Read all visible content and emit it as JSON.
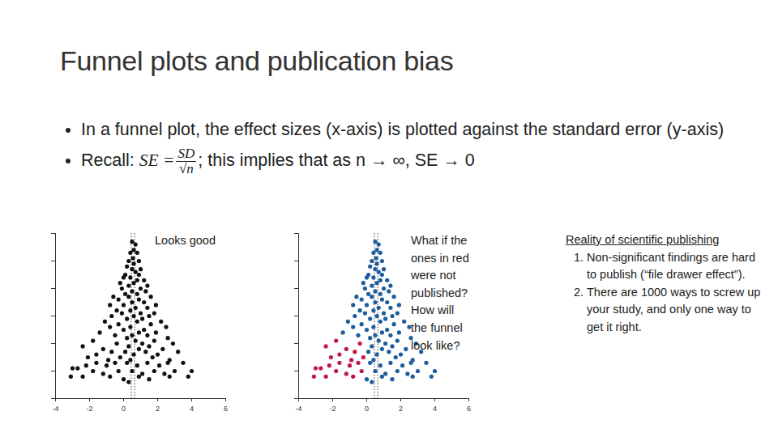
{
  "title": "Funnel plots and publication bias",
  "bullets": [
    "In a funnel plot, the effect sizes (x-axis) is plotted against the standard error (y-axis)"
  ],
  "recall": {
    "prefix": "Recall: ",
    "lhs": "SE =",
    "numerator": "SD",
    "denominator": "√n",
    "suffix": "; this implies that as n → ∞, SE → 0"
  },
  "side_note": {
    "heading": "Reality of scientific publishing",
    "items": [
      "Non-significant findings are hard to publish (“file drawer effect”).",
      "There are 1000 ways to screw up your study, and only one way to get it right."
    ]
  },
  "chart_data": [
    {
      "type": "scatter",
      "annotation": [
        "Looks good"
      ],
      "marker": "circle",
      "grid": false,
      "tick_labels": "x",
      "xlim": [
        -4,
        6
      ],
      "xticks": [
        -4,
        -2,
        0,
        2,
        4,
        6
      ],
      "ylim": [
        0.6,
        0
      ],
      "yticks": [
        0,
        0.1,
        0.2,
        0.3,
        0.4,
        0.5,
        0.6
      ],
      "vlines": [
        0.45,
        0.65
      ],
      "series": [
        {
          "color": "#111111",
          "x": [
            0.5,
            0.7,
            0.6,
            0.4,
            0.8,
            0.55,
            0.3,
            0.9,
            0.6,
            0.2,
            1.0,
            0.5,
            0.7,
            0.1,
            0.9,
            0.0,
            0.4,
            1.2,
            0.8,
            -0.2,
            0.6,
            1.4,
            0.3,
            1.0,
            -0.1,
            0.5,
            1.3,
            0.8,
            0.1,
            -0.6,
            0.3,
            1.6,
            0.9,
            -0.3,
            1.2,
            0.5,
            -0.8,
            1.9,
            0.0,
            0.7,
            1.4,
            -0.4,
            0.4,
            1.0,
            1.8,
            -0.1,
            0.6,
            -0.7,
            1.5,
            0.2,
            1.1,
            -1.1,
            2.2,
            0.8,
            -0.3,
            1.6,
            0.4,
            -0.8,
            2.5,
            1.2,
            0.0,
            -1.4,
            0.9,
            1.9,
            0.5,
            -0.5,
            1.4,
            2.6,
            0.2,
            -1.8,
            0.7,
            1.8,
            -0.4,
            1.1,
            2.9,
            -2.4,
            0.3,
            1.5,
            -1.2,
            0.9,
            2.3,
            -0.7,
            0.1,
            1.3,
            3.2,
            -1.6,
            0.6,
            2.0,
            -0.2,
            1.7,
            -2.1,
            0.4,
            2.7,
            -0.9,
            -3.0,
            -2.7,
            -2.2,
            -1.6,
            -1.0,
            -0.5,
            0.2,
            0.8,
            1.4,
            2.1,
            2.6,
            3.5,
            -1.8,
            -1.2,
            -0.3,
            0.5,
            1.1,
            1.8,
            2.4,
            3.0,
            4.0,
            -0.8,
            0.0,
            0.9,
            1.5,
            2.7,
            3.8,
            -2.4,
            -3.1,
            0.3
          ],
          "y": [
            0.03,
            0.04,
            0.06,
            0.07,
            0.07,
            0.09,
            0.1,
            0.1,
            0.11,
            0.12,
            0.13,
            0.13,
            0.14,
            0.15,
            0.15,
            0.16,
            0.16,
            0.17,
            0.17,
            0.18,
            0.18,
            0.19,
            0.19,
            0.2,
            0.2,
            0.21,
            0.21,
            0.22,
            0.22,
            0.23,
            0.23,
            0.23,
            0.24,
            0.24,
            0.25,
            0.25,
            0.26,
            0.26,
            0.26,
            0.27,
            0.27,
            0.28,
            0.28,
            0.29,
            0.29,
            0.29,
            0.3,
            0.3,
            0.3,
            0.31,
            0.31,
            0.32,
            0.32,
            0.32,
            0.33,
            0.33,
            0.34,
            0.34,
            0.34,
            0.35,
            0.35,
            0.36,
            0.36,
            0.36,
            0.37,
            0.37,
            0.37,
            0.38,
            0.38,
            0.39,
            0.39,
            0.39,
            0.4,
            0.4,
            0.4,
            0.41,
            0.41,
            0.41,
            0.42,
            0.42,
            0.42,
            0.43,
            0.43,
            0.43,
            0.43,
            0.44,
            0.44,
            0.44,
            0.45,
            0.45,
            0.45,
            0.46,
            0.46,
            0.46,
            0.49,
            0.49,
            0.48,
            0.47,
            0.48,
            0.47,
            0.47,
            0.48,
            0.47,
            0.48,
            0.47,
            0.47,
            0.5,
            0.51,
            0.5,
            0.5,
            0.51,
            0.5,
            0.51,
            0.5,
            0.5,
            0.52,
            0.53,
            0.52,
            0.53,
            0.52,
            0.52,
            0.52,
            0.52,
            0.54
          ]
        }
      ]
    },
    {
      "type": "scatter",
      "annotation": [
        "What if the",
        "ones in red",
        "were not",
        "published?",
        "How will",
        "the funnel",
        "look like?"
      ],
      "marker": "circle",
      "grid": false,
      "tick_labels": "x",
      "xlim": [
        -4,
        6
      ],
      "xticks": [
        -4,
        -2,
        0,
        2,
        4,
        6
      ],
      "ylim": [
        0.6,
        0
      ],
      "yticks": [
        0,
        0.1,
        0.2,
        0.3,
        0.4,
        0.5,
        0.6
      ],
      "vlines": [
        0.45,
        0.65
      ],
      "series": [
        {
          "color": "#1f5c9e",
          "x": [
            0.5,
            0.7,
            0.6,
            0.4,
            0.8,
            0.55,
            0.3,
            0.9,
            0.6,
            0.2,
            1.0,
            0.5,
            0.7,
            0.1,
            0.9,
            0.0,
            0.4,
            1.2,
            0.8,
            -0.2,
            0.6,
            1.4,
            0.3,
            1.0,
            -0.1,
            0.5,
            1.3,
            0.8,
            0.1,
            -0.6,
            0.3,
            1.6,
            0.9,
            -0.3,
            1.2,
            0.5,
            -0.8,
            1.9,
            0.0,
            0.7,
            1.4,
            -0.4,
            0.4,
            1.0,
            1.8,
            -0.1,
            0.6,
            -0.7,
            1.5,
            0.2,
            1.1,
            -1.1,
            2.2,
            0.8,
            -0.3,
            1.6,
            0.4,
            -0.8,
            2.5,
            1.2,
            0.0,
            -1.4,
            0.9,
            1.9,
            0.5,
            -0.5,
            1.4,
            2.6,
            0.2,
            0.7,
            1.8,
            1.1,
            2.9,
            0.3,
            1.5,
            0.9,
            2.3,
            0.1,
            1.3,
            3.2,
            0.6,
            2.0,
            1.7,
            0.4,
            2.7,
            0.2,
            0.8,
            1.4,
            2.1,
            2.6,
            3.5,
            0.5,
            1.1,
            1.8,
            2.4,
            3.0,
            4.0,
            0.0,
            0.9,
            1.5,
            2.7,
            3.8,
            0.3
          ],
          "y": [
            0.03,
            0.04,
            0.06,
            0.07,
            0.07,
            0.09,
            0.1,
            0.1,
            0.11,
            0.12,
            0.13,
            0.13,
            0.14,
            0.15,
            0.15,
            0.16,
            0.16,
            0.17,
            0.17,
            0.18,
            0.18,
            0.19,
            0.19,
            0.2,
            0.2,
            0.21,
            0.21,
            0.22,
            0.22,
            0.23,
            0.23,
            0.23,
            0.24,
            0.24,
            0.25,
            0.25,
            0.26,
            0.26,
            0.26,
            0.27,
            0.27,
            0.28,
            0.28,
            0.29,
            0.29,
            0.29,
            0.3,
            0.3,
            0.3,
            0.31,
            0.31,
            0.32,
            0.32,
            0.32,
            0.33,
            0.33,
            0.34,
            0.34,
            0.34,
            0.35,
            0.35,
            0.36,
            0.36,
            0.36,
            0.37,
            0.37,
            0.37,
            0.38,
            0.38,
            0.39,
            0.39,
            0.4,
            0.4,
            0.41,
            0.41,
            0.42,
            0.42,
            0.43,
            0.43,
            0.43,
            0.44,
            0.44,
            0.45,
            0.46,
            0.46,
            0.47,
            0.48,
            0.47,
            0.48,
            0.47,
            0.47,
            0.5,
            0.51,
            0.5,
            0.51,
            0.5,
            0.5,
            0.53,
            0.52,
            0.53,
            0.52,
            0.52,
            0.54
          ]
        },
        {
          "color": "#c2174d",
          "x": [
            -1.8,
            -0.4,
            -2.4,
            -1.2,
            -0.7,
            -1.6,
            -0.2,
            -2.1,
            -0.9,
            -3.0,
            -2.7,
            -2.2,
            -1.6,
            -1.0,
            -0.5,
            -1.8,
            -1.2,
            -0.3,
            -0.8,
            -2.4,
            -3.1
          ],
          "y": [
            0.39,
            0.4,
            0.41,
            0.42,
            0.43,
            0.44,
            0.45,
            0.45,
            0.46,
            0.49,
            0.49,
            0.48,
            0.47,
            0.48,
            0.47,
            0.5,
            0.51,
            0.5,
            0.52,
            0.52,
            0.52
          ]
        }
      ]
    }
  ]
}
